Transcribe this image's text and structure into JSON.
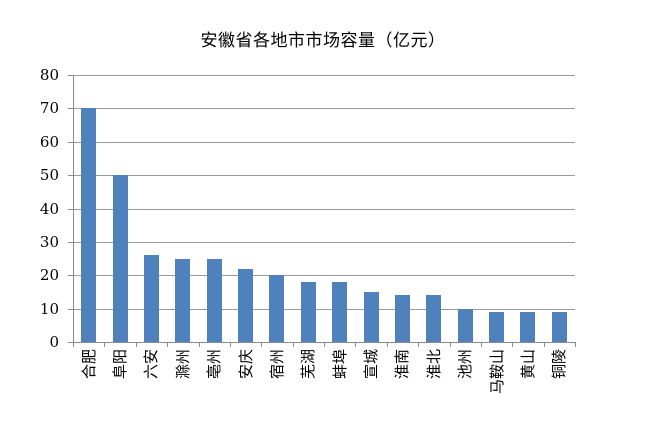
{
  "chart_data": {
    "type": "bar",
    "title": "安徽省各地市市场容量（亿元）",
    "categories": [
      "合肥",
      "阜阳",
      "六安",
      "滁州",
      "亳州",
      "安庆",
      "宿州",
      "芜湖",
      "蚌埠",
      "宣城",
      "淮南",
      "淮北",
      "池州",
      "马鞍山",
      "黄山",
      "铜陵"
    ],
    "values": [
      70,
      50,
      26,
      25,
      25,
      22,
      20,
      18,
      18,
      15,
      14,
      14,
      10,
      9,
      9,
      9
    ],
    "xlabel": "",
    "ylabel": "",
    "ylim": [
      0,
      80
    ],
    "ytick_step": 10,
    "ytick_labels": [
      "0",
      "10",
      "20",
      "30",
      "40",
      "50",
      "60",
      "70",
      "80"
    ],
    "grid": "on",
    "legend": "none",
    "bar_color": "#4F81BD",
    "grid_color": "#9B9B9B",
    "axis_color": "#8C8C8C",
    "text_color": "#000000",
    "background_color": "#FFFFFF"
  }
}
